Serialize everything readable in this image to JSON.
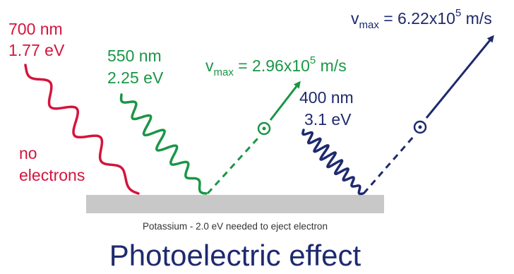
{
  "title": "Photoelectric effect",
  "surface": {
    "label": "Potassium - 2.0 eV needed to eject electron",
    "color": "#c8c8c8"
  },
  "colors": {
    "red": "#d4143c",
    "green": "#1a9646",
    "navy": "#1e2a6e"
  },
  "photons": [
    {
      "wavelength": "700 nm",
      "energy": "1.77 eV",
      "color": "red",
      "result": [
        "no",
        "electrons"
      ]
    },
    {
      "wavelength": "550 nm",
      "energy": "2.25 eV",
      "color": "green",
      "electron": {
        "symbol": "⊙",
        "vmax_prefix": "v",
        "vmax_sub": "max",
        "vmax_mid": " = 2.96x10",
        "vmax_exp": "5",
        "vmax_unit": " m/s"
      }
    },
    {
      "wavelength": "400 nm",
      "energy": "3.1 eV",
      "color": "navy",
      "electron": {
        "symbol": "⊙",
        "vmax_prefix": "v",
        "vmax_sub": "max",
        "vmax_mid": " = 6.22x10",
        "vmax_exp": "5",
        "vmax_unit": " m/s"
      }
    }
  ]
}
